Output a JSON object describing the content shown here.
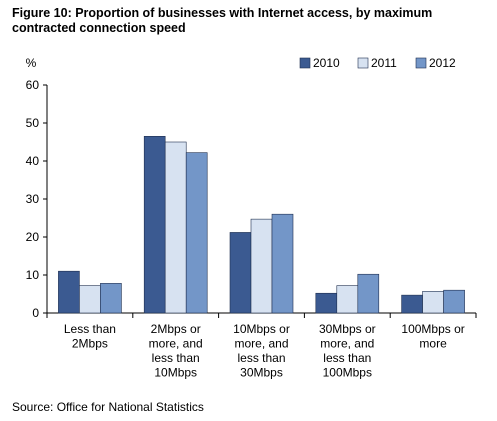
{
  "chart_data": {
    "type": "bar",
    "title": "Figure 10: Proportion of businesses with Internet access, by maximum contracted connection speed",
    "ylabel": "%",
    "xlabel": "",
    "ylim": [
      0,
      60
    ],
    "yticks": [
      0,
      10,
      20,
      30,
      40,
      50,
      60
    ],
    "grid": false,
    "legend_position": "top-right",
    "categories": [
      [
        "Less than",
        "2Mbps"
      ],
      [
        "2Mbps or",
        "more, and",
        "less than",
        "10Mbps"
      ],
      [
        "10Mbps or",
        "more, and",
        "less than",
        "30Mbps"
      ],
      [
        "30Mbps or",
        "more, and",
        "less than",
        "100Mbps"
      ],
      [
        "100Mbps or",
        "more"
      ]
    ],
    "series": [
      {
        "name": "2010",
        "color": "#3B5A91",
        "values": [
          11,
          46.5,
          21.2,
          5.2,
          4.7
        ]
      },
      {
        "name": "2011",
        "color": "#D7E2F1",
        "values": [
          7.2,
          45,
          24.7,
          7.2,
          5.7
        ]
      },
      {
        "name": "2012",
        "color": "#7396C8",
        "values": [
          7.8,
          42.2,
          26,
          10.2,
          6
        ]
      }
    ]
  },
  "source": "Source: Office for National Statistics"
}
